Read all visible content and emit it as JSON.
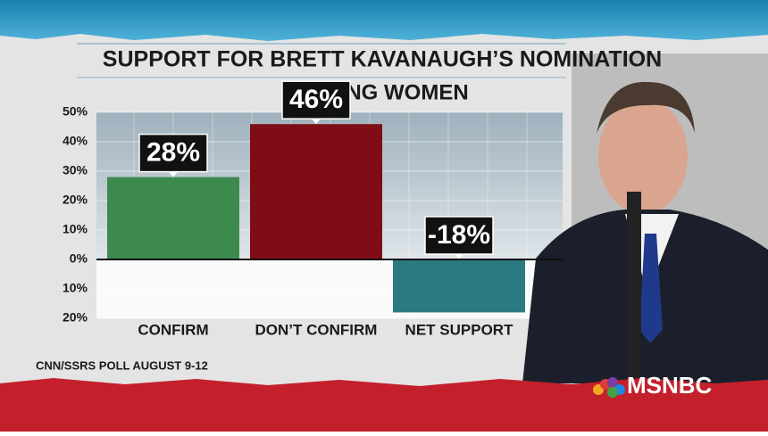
{
  "chart_data": {
    "type": "bar",
    "title": "SUPPORT FOR BRETT KAVANAUGH’S NOMINATION",
    "subtitle": "AMONG WOMEN",
    "categories": [
      "CONFIRM",
      "DON’T CONFIRM",
      "NET SUPPORT"
    ],
    "values": [
      28,
      46,
      -18
    ],
    "value_labels": [
      "28%",
      "46%",
      "-18%"
    ],
    "colors": [
      "#3d8a4f",
      "#7e0d16",
      "#2a7a80"
    ],
    "ylim": [
      -20,
      50
    ],
    "yticks": [
      {
        "value": 50,
        "label": "50%"
      },
      {
        "value": 40,
        "label": "40%"
      },
      {
        "value": 30,
        "label": "30%"
      },
      {
        "value": 20,
        "label": "20%"
      },
      {
        "value": 10,
        "label": "10%"
      },
      {
        "value": 0,
        "label": "0%"
      },
      {
        "value": -10,
        "label": "10%"
      },
      {
        "value": -20,
        "label": "20%"
      }
    ],
    "grid": true,
    "source": "CNN/SSRS POLL AUGUST 9-12",
    "logo": "MSNBC"
  }
}
